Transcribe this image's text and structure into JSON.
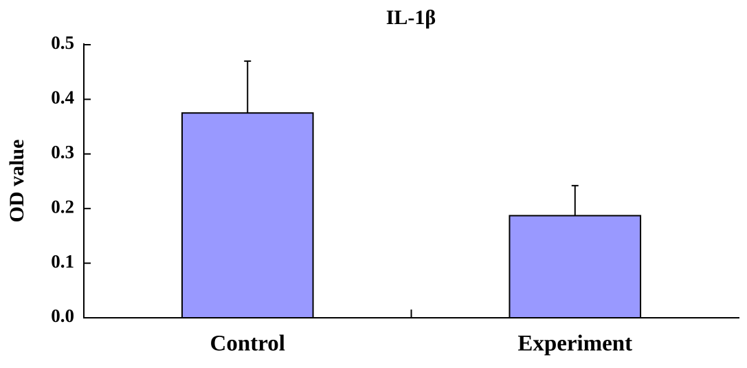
{
  "chart_data": {
    "type": "bar",
    "title": "IL-1β",
    "y_label": "OD value",
    "categories": [
      "Control",
      "Experiment"
    ],
    "values": [
      0.375,
      0.187
    ],
    "errors": [
      0.095,
      0.055
    ],
    "color": "#9999ff",
    "ylim": [
      0,
      0.5
    ],
    "yticks": [
      {
        "value": 0,
        "label": "0.0"
      },
      0.1,
      0.2,
      0.3,
      0.4,
      0.5
    ],
    "grid": false
  }
}
